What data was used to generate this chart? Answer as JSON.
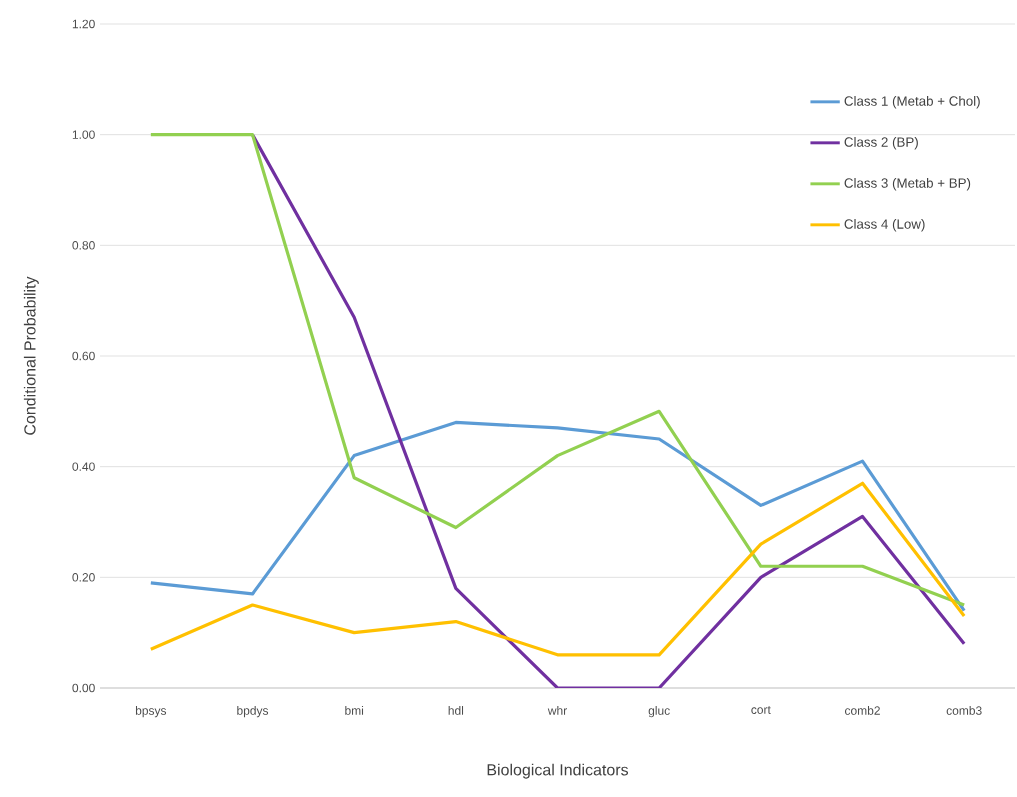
{
  "chart_data": {
    "type": "line",
    "xlabel": "Biological Indicators",
    "ylabel": "Conditional Probability",
    "categories": [
      "bpsys",
      "bpdys",
      "bmi",
      "hdl",
      "whr",
      "gluc",
      "cort",
      "comb2",
      "comb3"
    ],
    "series": [
      {
        "name": "Class 1 (Metab + Chol)",
        "color": "#5b9bd5",
        "values": [
          0.19,
          0.17,
          0.42,
          0.48,
          0.47,
          0.45,
          0.33,
          0.41,
          0.14
        ]
      },
      {
        "name": "Class 2 (BP)",
        "color": "#7030a0",
        "values": [
          null,
          1.0,
          0.67,
          0.18,
          0.0,
          0.0,
          0.2,
          0.31,
          0.08
        ]
      },
      {
        "name": "Class 3 (Metab + BP)",
        "color": "#92d050",
        "values": [
          1.0,
          1.0,
          0.38,
          0.29,
          0.42,
          0.5,
          0.22,
          0.22,
          0.15
        ]
      },
      {
        "name": "Class 4 (Low)",
        "color": "#ffc000",
        "values": [
          0.07,
          0.15,
          0.1,
          0.12,
          0.06,
          0.06,
          0.26,
          0.37,
          0.13
        ]
      }
    ],
    "ylim": [
      0,
      1.2
    ],
    "yticks": [
      {
        "value": 0,
        "label": "0.00"
      },
      {
        "value": 0.2,
        "label": "0.20"
      },
      {
        "value": 0.4,
        "label": "0.40"
      },
      {
        "value": 0.6,
        "label": "0.60"
      },
      {
        "value": 0.8,
        "label": "0.80"
      },
      {
        "value": 1.0,
        "label": "1.00"
      },
      {
        "value": 1.2,
        "label": "1.20"
      }
    ],
    "grid": "y",
    "legend": "top right",
    "marker": "none",
    "line_style": "solid"
  }
}
